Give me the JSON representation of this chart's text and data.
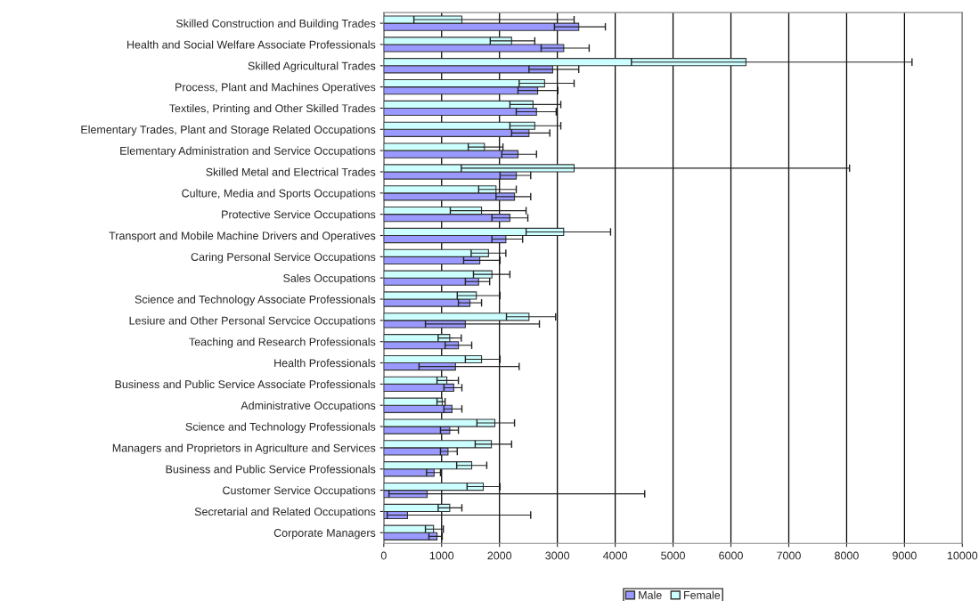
{
  "chart_data": {
    "type": "bar",
    "orientation": "horizontal",
    "categories": [
      "Skilled Construction and Building Trades",
      "Health and Social Welfare Associate Professionals",
      "Skilled Agricultural Trades",
      "Process, Plant and Machines Operatives",
      "Textiles, Printing and Other Skilled Trades",
      "Elementary Trades, Plant and Storage Related Occupations",
      "Elementary Administration and Service Occupations",
      "Skilled Metal and Electrical Trades",
      "Culture, Media and Sports Occupations",
      "Protective Service Occupations",
      "Transport and Mobile Machine Drivers and Operatives",
      "Caring Personal Service Occupations",
      "Sales Occupations",
      "Science and Technology Associate Professionals",
      "Lesiure and Other Personal Servcice Occupations",
      "Teaching and Research Professionals",
      "Health Professionals",
      "Business and Public Service Associate Professionals",
      "Administrative Occupations",
      "Science and Technology Professionals",
      "Managers and Proprietors in Agriculture and Services",
      "Business and Public Service Professionals",
      "Customer Service Occupations",
      "Secretarial and Related Occupations",
      "Corporate Managers"
    ],
    "series": [
      {
        "name": "Male",
        "color": "#9999ff",
        "values": [
          3370,
          3110,
          2920,
          2660,
          2640,
          2510,
          2320,
          2290,
          2260,
          2180,
          2110,
          1660,
          1640,
          1490,
          1410,
          1290,
          1240,
          1210,
          1180,
          1140,
          1110,
          870,
          750,
          410,
          920
        ],
        "errors": [
          [
            2950,
            3830
          ],
          [
            2720,
            3550
          ],
          [
            2510,
            3370
          ],
          [
            2320,
            3010
          ],
          [
            2290,
            2980
          ],
          [
            2210,
            2870
          ],
          [
            2040,
            2640
          ],
          [
            2010,
            2540
          ],
          [
            1940,
            2540
          ],
          [
            1870,
            2490
          ],
          [
            1870,
            2400
          ],
          [
            1380,
            2010
          ],
          [
            1410,
            1830
          ],
          [
            1290,
            1690
          ],
          [
            720,
            2690
          ],
          [
            1060,
            1520
          ],
          [
            610,
            2340
          ],
          [
            1040,
            1350
          ],
          [
            1040,
            1350
          ],
          [
            980,
            1290
          ],
          [
            980,
            1270
          ],
          [
            740,
            980
          ],
          [
            90,
            4510
          ],
          [
            60,
            2540
          ],
          [
            780,
            1010
          ]
        ]
      },
      {
        "name": "Female",
        "color": "#ccffff",
        "values": [
          1350,
          2210,
          6260,
          2780,
          2580,
          2610,
          1740,
          3290,
          1940,
          1690,
          3110,
          1810,
          1870,
          1600,
          2510,
          1140,
          1690,
          1090,
          1010,
          1920,
          1860,
          1520,
          1720,
          1140,
          860
        ],
        "errors": [
          [
            520,
            3290
          ],
          [
            1840,
            2610
          ],
          [
            4280,
            9130
          ],
          [
            2340,
            3290
          ],
          [
            2180,
            3060
          ],
          [
            2180,
            3060
          ],
          [
            1460,
            2060
          ],
          [
            1340,
            8050
          ],
          [
            1640,
            2290
          ],
          [
            1150,
            2460
          ],
          [
            2460,
            3920
          ],
          [
            1510,
            2110
          ],
          [
            1550,
            2180
          ],
          [
            1270,
            2010
          ],
          [
            2120,
            2970
          ],
          [
            940,
            1340
          ],
          [
            1410,
            2010
          ],
          [
            920,
            1290
          ],
          [
            920,
            1060
          ],
          [
            1610,
            2260
          ],
          [
            1580,
            2210
          ],
          [
            1260,
            1780
          ],
          [
            1440,
            2010
          ],
          [
            940,
            1350
          ],
          [
            720,
            1030
          ]
        ]
      }
    ],
    "xlim": [
      0,
      10000
    ],
    "xticks": [
      0,
      1000,
      2000,
      3000,
      4000,
      5000,
      6000,
      7000,
      8000,
      9000,
      10000
    ],
    "grid": "x",
    "legend": "bottom"
  }
}
